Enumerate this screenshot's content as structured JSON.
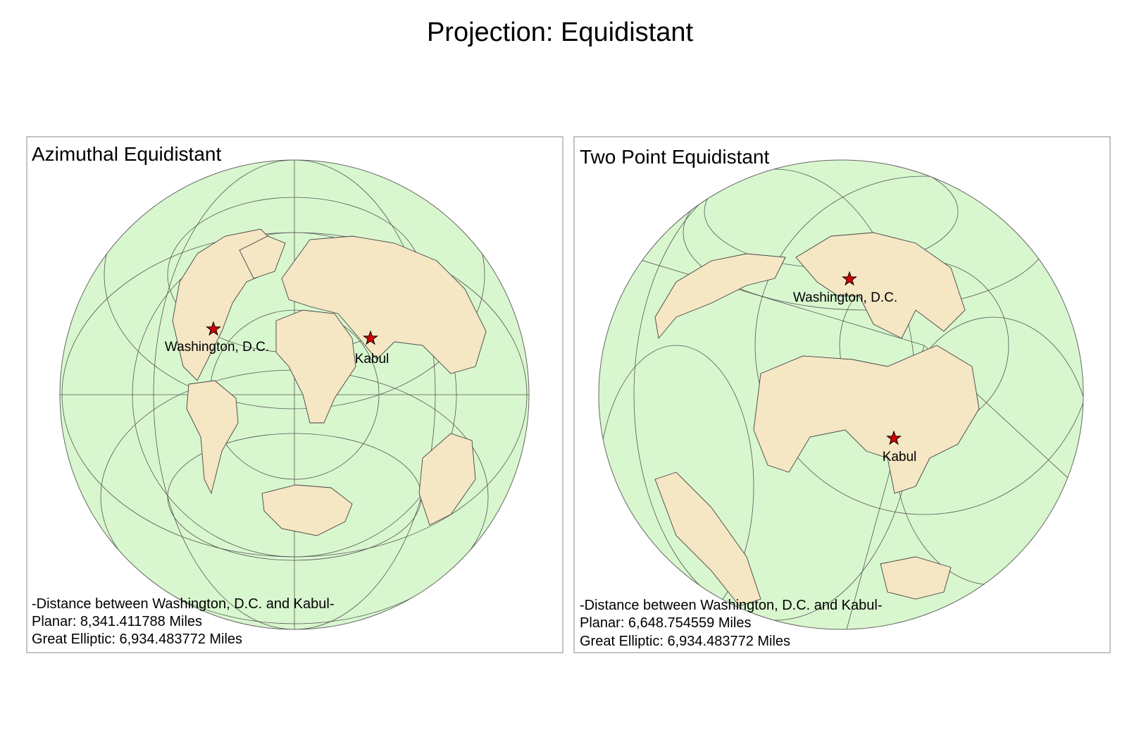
{
  "title": "Projection: Equidistant",
  "panels": [
    {
      "title": "Azimuthal Equidistant",
      "places": [
        "Washington, D.C.",
        "Kabul"
      ],
      "notes": [
        "-Distance between Washington, D.C. and Kabul-",
        "Planar: 8,341.411788 Miles",
        "Great Elliptic: 6,934.483772 Miles"
      ]
    },
    {
      "title": "Two Point Equidistant",
      "places": [
        "Washington, D.C.",
        "Kabul"
      ],
      "notes": [
        "-Distance between Washington, D.C. and Kabul-",
        "Planar: 6,648.754559 Miles",
        "Great Elliptic: 6,934.483772 Miles"
      ]
    }
  ]
}
